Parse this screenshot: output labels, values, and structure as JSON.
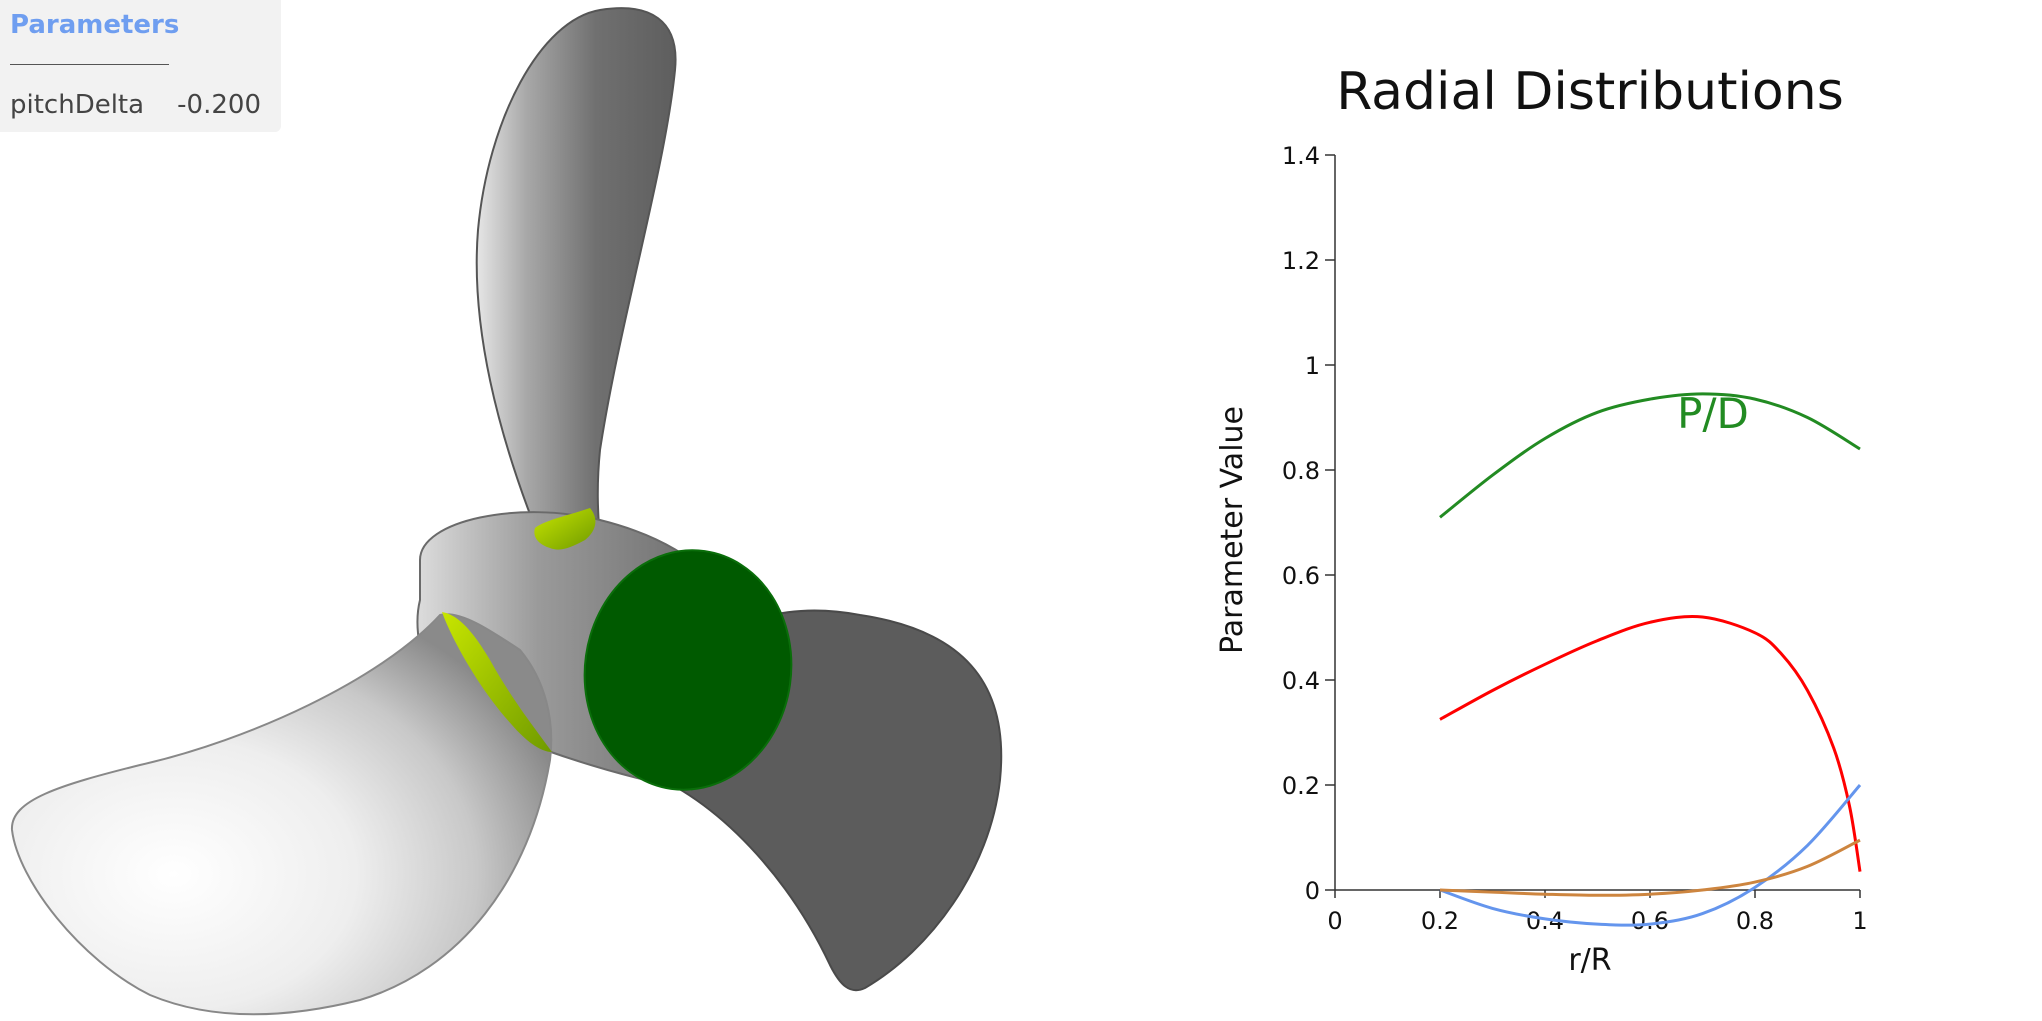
{
  "panel": {
    "title": "Parameters",
    "param": {
      "name": "pitchDelta",
      "value": "-0.200"
    }
  },
  "viewport": {
    "hub_face_color": "#005a00",
    "hub_face_edge_color": "#0a6e0a",
    "fillet_color": "#9acd00",
    "blade_dark_color": "#5a5a5a",
    "blade_light_color": "#f2f2f2"
  },
  "chart_data": {
    "type": "line",
    "title": "Radial Distributions",
    "xlabel": "r/R",
    "ylabel": "Parameter Value",
    "xlim": [
      0,
      1
    ],
    "ylim": [
      0,
      1.4
    ],
    "xticks": [
      "0",
      "0.2",
      "0.4",
      "0.6",
      "0.8",
      "1"
    ],
    "yticks": [
      "0",
      "0.2",
      "0.4",
      "0.6",
      "0.8",
      "1",
      "1.2",
      "1.4"
    ],
    "annotations": [
      {
        "text": "P/D",
        "x": 0.72,
        "y": 0.88,
        "color": "#228b22"
      }
    ],
    "series": [
      {
        "color": "#228b22",
        "x": [
          0.2,
          0.3,
          0.4,
          0.5,
          0.6,
          0.7,
          0.8,
          0.9,
          1.0
        ],
        "y": [
          0.71,
          0.79,
          0.86,
          0.91,
          0.935,
          0.945,
          0.935,
          0.9,
          0.84
        ]
      },
      {
        "color": "#ff0000",
        "x": [
          0.2,
          0.3,
          0.4,
          0.5,
          0.6,
          0.7,
          0.8,
          0.85,
          0.9,
          0.95,
          0.98,
          1.0
        ],
        "y": [
          0.325,
          0.38,
          0.43,
          0.475,
          0.51,
          0.52,
          0.49,
          0.45,
          0.38,
          0.27,
          0.16,
          0.035
        ]
      },
      {
        "color": "#6495ed",
        "x": [
          0.2,
          0.3,
          0.4,
          0.5,
          0.6,
          0.7,
          0.8,
          0.9,
          1.0
        ],
        "y": [
          0.0,
          -0.035,
          -0.055,
          -0.065,
          -0.065,
          -0.045,
          0.005,
          0.085,
          0.2
        ]
      },
      {
        "color": "#cd853f",
        "x": [
          0.2,
          0.3,
          0.4,
          0.5,
          0.6,
          0.7,
          0.8,
          0.9,
          1.0
        ],
        "y": [
          0.0,
          -0.004,
          -0.008,
          -0.01,
          -0.008,
          0.0,
          0.015,
          0.045,
          0.095
        ]
      }
    ]
  }
}
